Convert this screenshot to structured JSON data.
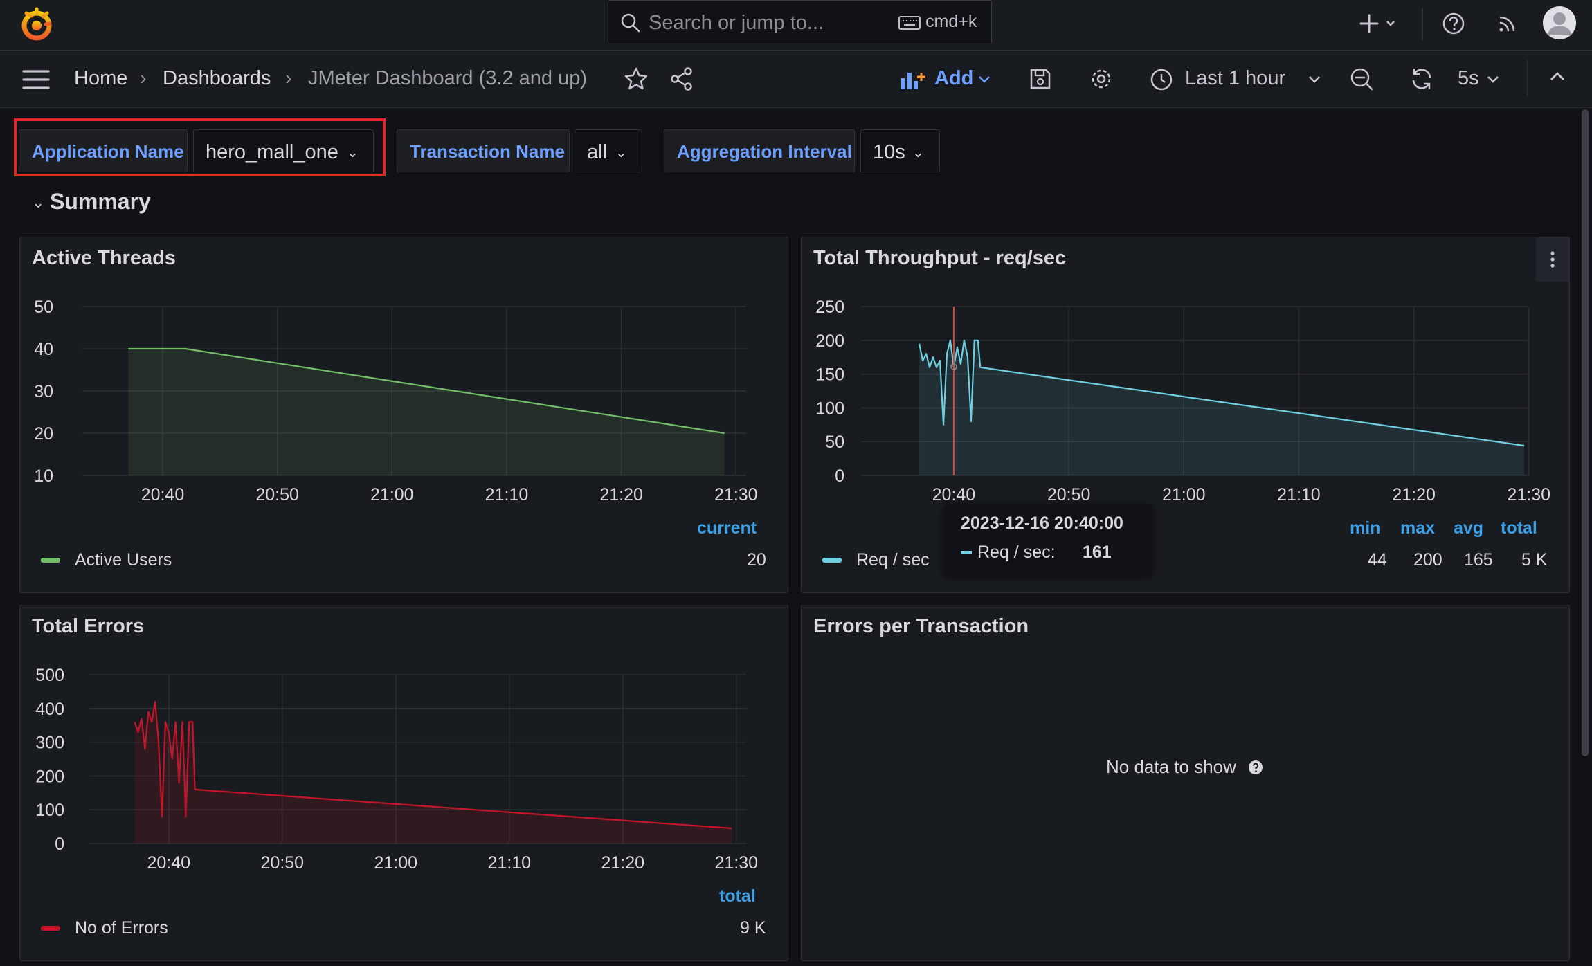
{
  "topbar": {
    "search_placeholder": "Search or jump to...",
    "shortcut": "cmd+k",
    "logo_icon": "grafana-logo-icon",
    "add_icon": "plus-icon",
    "help_icon": "help-icon",
    "news_icon": "rss-icon",
    "avatar_icon": "user-avatar-icon"
  },
  "navbar": {
    "breadcrumbs": [
      "Home",
      "Dashboards",
      "JMeter Dashboard (3.2 and up)"
    ],
    "add_label": "Add",
    "time_range": "Last 1 hour",
    "refresh_interval": "5s"
  },
  "variables": [
    {
      "label": "Application Name",
      "value": "hero_mall_one"
    },
    {
      "label": "Transaction Name",
      "value": "all"
    },
    {
      "label": "Aggregation Interval",
      "value": "10s"
    }
  ],
  "row": {
    "title": "Summary"
  },
  "panels": {
    "active_threads": {
      "title": "Active Threads",
      "legend_header": "current",
      "legend_name": "Active Users",
      "legend_value": "20"
    },
    "throughput": {
      "title": "Total Throughput - req/sec",
      "legend_name": "Req / sec",
      "stat_headers": [
        "min",
        "max",
        "avg",
        "total"
      ],
      "stat_values": [
        "44",
        "200",
        "165",
        "5 K"
      ],
      "tooltip": {
        "time": "2023-12-16 20:40:00",
        "label": "Req / sec:",
        "value": "161"
      }
    },
    "errors": {
      "title": "Total Errors",
      "legend_header": "total",
      "legend_name": "No of Errors",
      "legend_value": "9 K"
    },
    "errors_per_tx": {
      "title": "Errors per Transaction",
      "empty": "No data to show"
    }
  },
  "colors": {
    "active_users": "#73bf69",
    "req_sec": "#6ed0e0",
    "errors": "#c4162a",
    "accent": "#6e9fff",
    "legend_header": "#3d9fe6"
  },
  "chart_data": [
    {
      "type": "area",
      "title": "Active Threads",
      "x": [
        "20:37",
        "20:42",
        "21:29"
      ],
      "series": [
        {
          "name": "Active Users",
          "values": [
            40,
            40,
            20
          ]
        }
      ],
      "ylim": [
        10,
        50
      ],
      "yticks": [
        10,
        20,
        30,
        40,
        50
      ],
      "xticks": [
        "20:40",
        "20:50",
        "21:00",
        "21:10",
        "21:20",
        "21:30"
      ]
    },
    {
      "type": "area",
      "title": "Total Throughput - req/sec",
      "series": [
        {
          "name": "Req / sec",
          "x_minutes": [
            0,
            0.3,
            0.6,
            0.9,
            1.2,
            1.5,
            1.8,
            2.1,
            2.4,
            2.7,
            3.0,
            3.3,
            3.6,
            3.9,
            4.2,
            4.5,
            4.8,
            5.1,
            5.3,
            52.6
          ],
          "values": [
            195,
            170,
            180,
            160,
            175,
            160,
            170,
            75,
            180,
            200,
            160,
            190,
            165,
            200,
            175,
            80,
            200,
            200,
            160,
            44
          ]
        }
      ],
      "ylim": [
        0,
        250
      ],
      "yticks": [
        0,
        50,
        100,
        150,
        200,
        250
      ],
      "xticks": [
        "20:40",
        "20:50",
        "21:00",
        "21:10",
        "21:20",
        "21:30"
      ]
    },
    {
      "type": "area",
      "title": "Total Errors",
      "series": [
        {
          "name": "No of Errors",
          "x_minutes": [
            0,
            0.3,
            0.6,
            0.9,
            1.2,
            1.5,
            1.8,
            2.1,
            2.4,
            2.7,
            3.0,
            3.3,
            3.6,
            3.9,
            4.2,
            4.5,
            4.8,
            5.1,
            5.3,
            52.6
          ],
          "values": [
            360,
            330,
            370,
            280,
            390,
            360,
            420,
            300,
            80,
            360,
            330,
            250,
            360,
            180,
            360,
            80,
            360,
            360,
            160,
            45
          ]
        }
      ],
      "ylim": [
        0,
        500
      ],
      "yticks": [
        0,
        100,
        200,
        300,
        400,
        500
      ],
      "xticks": [
        "20:40",
        "20:50",
        "21:00",
        "21:10",
        "21:20",
        "21:30"
      ]
    }
  ]
}
